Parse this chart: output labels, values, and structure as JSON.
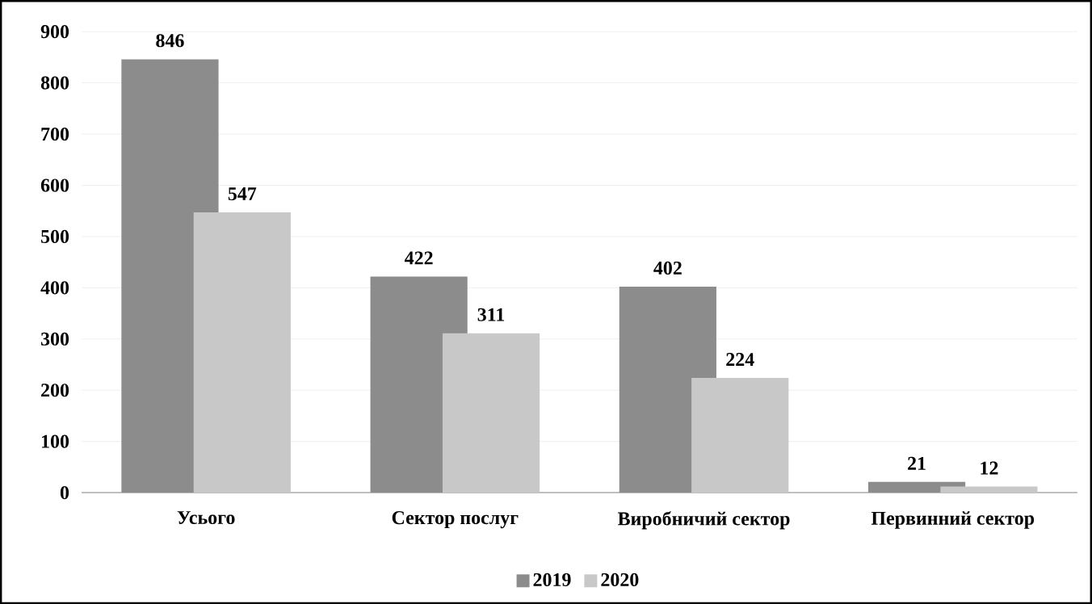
{
  "chart_data": {
    "type": "bar",
    "categories": [
      "Усього",
      "Сектор послуг",
      "Виробничий сектор",
      "Первинний сектор"
    ],
    "series": [
      {
        "name": "2019",
        "color": "#8c8c8c",
        "values": [
          846,
          422,
          402,
          21
        ]
      },
      {
        "name": "2020",
        "color": "#c8c8c8",
        "values": [
          547,
          311,
          224,
          12
        ]
      }
    ],
    "ylim": [
      0,
      900
    ],
    "yticks": [
      0,
      100,
      200,
      300,
      400,
      500,
      600,
      700,
      800,
      900
    ],
    "grid": "y",
    "legend": "bottom",
    "data_labels": true
  }
}
